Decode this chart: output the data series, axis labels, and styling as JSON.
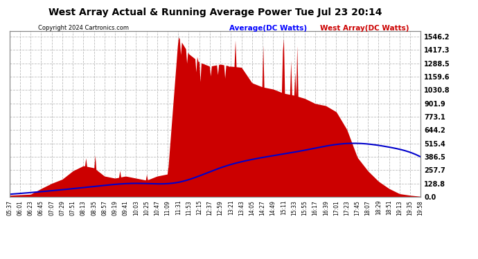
{
  "title": "West Array Actual & Running Average Power Tue Jul 23 20:14",
  "copyright": "Copyright 2024 Cartronics.com",
  "legend_avg": "Average(DC Watts)",
  "legend_west": "West Array(DC Watts)",
  "yticks": [
    0.0,
    128.8,
    257.7,
    386.5,
    515.4,
    644.2,
    773.1,
    901.9,
    1030.8,
    1159.6,
    1288.5,
    1417.3,
    1546.2
  ],
  "ymax": 1600,
  "bg_color": "#ffffff",
  "plot_bg_color": "#ffffff",
  "fill_color": "#cc0000",
  "avg_line_color": "#0000cc",
  "grid_color": "#aaaaaa",
  "title_color": "#000000",
  "avg_legend_color": "#0000ff",
  "west_legend_color": "#cc0000",
  "xtick_labels": [
    "05:37",
    "06:01",
    "06:23",
    "06:45",
    "07:07",
    "07:29",
    "07:51",
    "08:13",
    "08:35",
    "08:57",
    "09:19",
    "09:41",
    "10:03",
    "10:25",
    "10:47",
    "11:09",
    "11:31",
    "11:53",
    "12:15",
    "12:37",
    "12:59",
    "13:21",
    "13:43",
    "14:05",
    "14:27",
    "14:49",
    "15:11",
    "15:33",
    "15:55",
    "16:17",
    "16:39",
    "17:01",
    "17:23",
    "17:45",
    "18:07",
    "18:29",
    "18:51",
    "19:13",
    "19:35",
    "19:58"
  ]
}
